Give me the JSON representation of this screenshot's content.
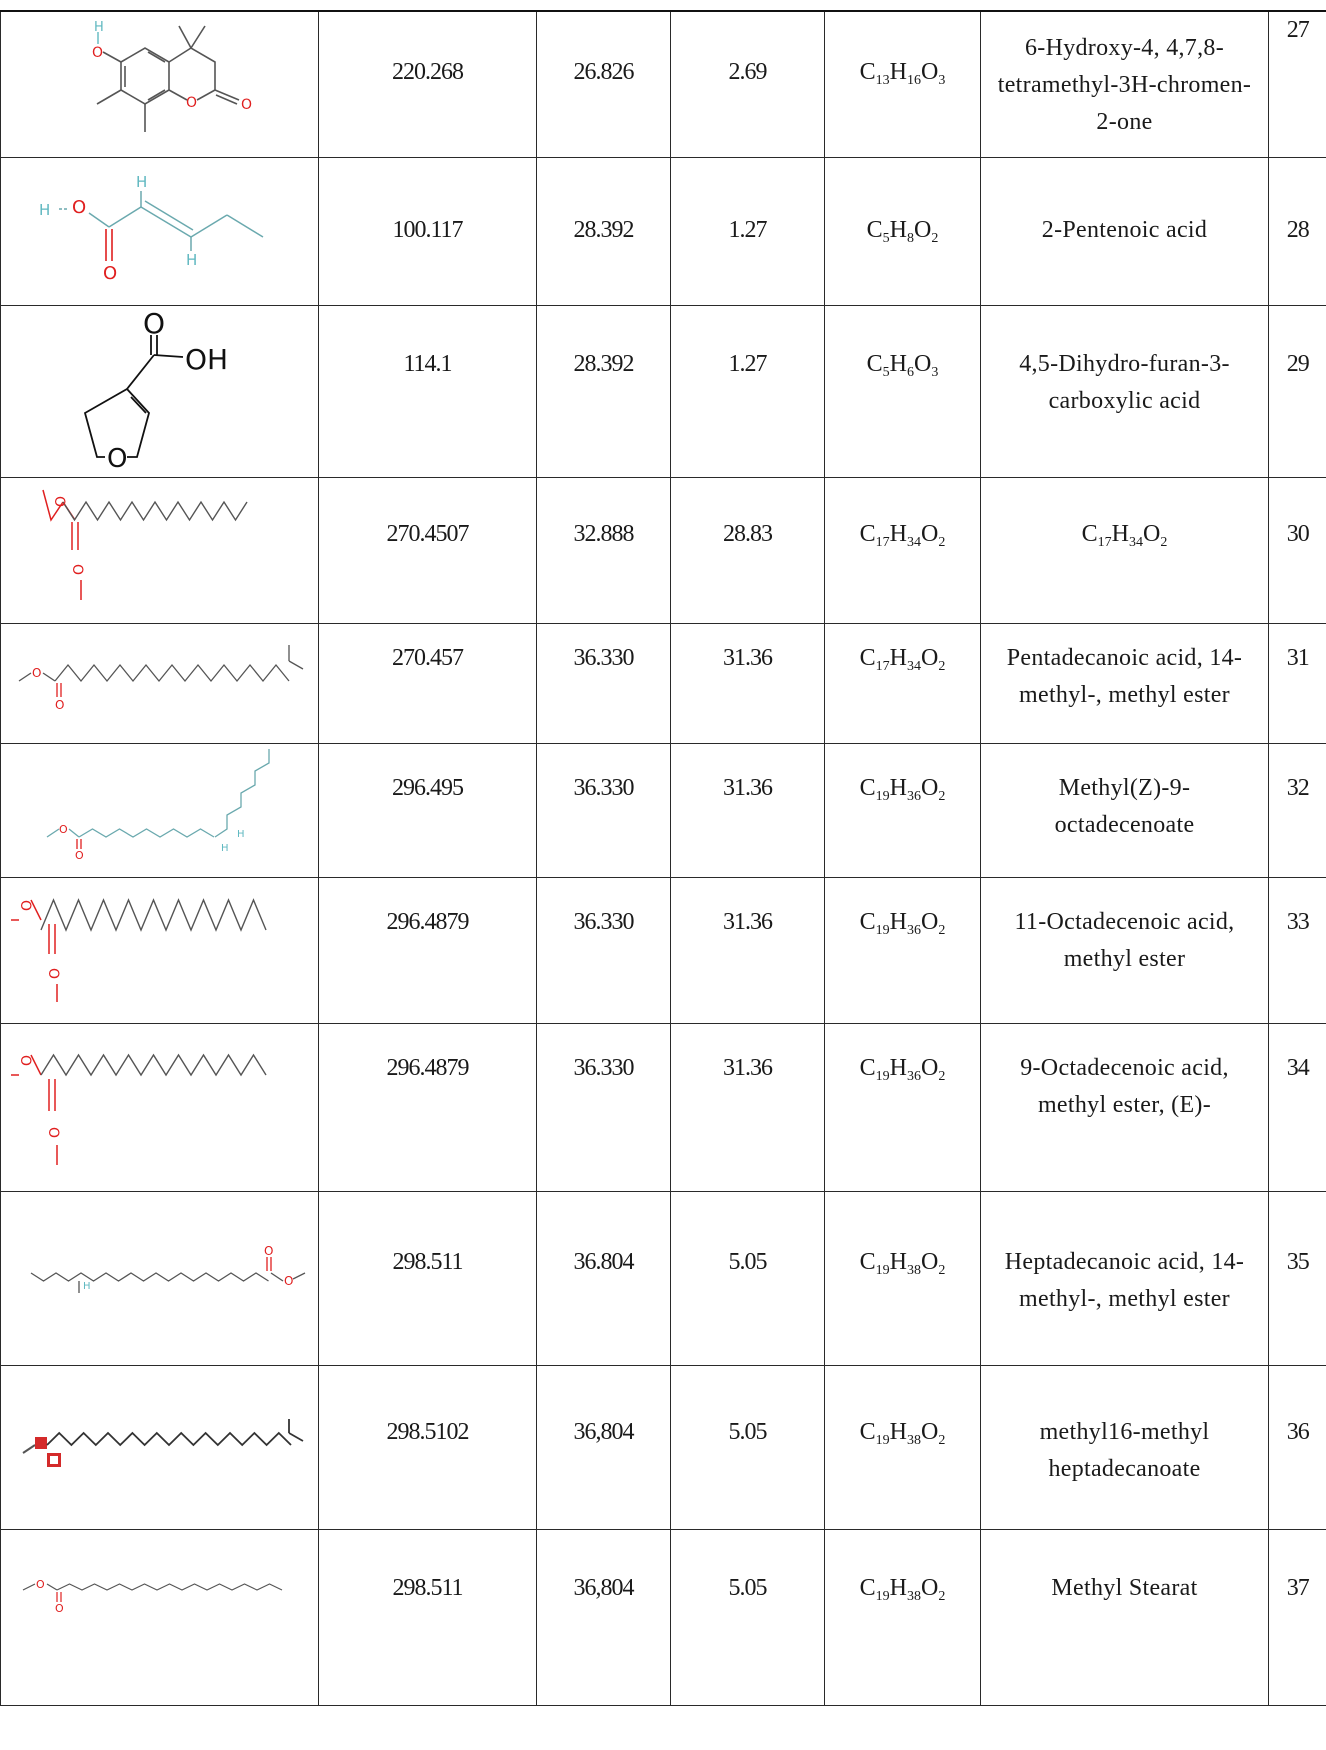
{
  "rows": [
    {
      "mw": "220.268",
      "rt": "26.826",
      "area": "2.69",
      "formula": [
        [
          "C",
          "13"
        ],
        [
          "H",
          "16"
        ],
        [
          "O",
          "3"
        ]
      ],
      "name": "6-Hydroxy-4, 4,7,8-tetramethyl-3H-chromen-2-one",
      "no": "27",
      "structure_labels": {
        "h": "H",
        "o1": "O",
        "o2": "O",
        "o3": "O"
      }
    },
    {
      "mw": "100.117",
      "rt": "28.392",
      "area": "1.27",
      "formula": [
        [
          "C",
          "5"
        ],
        [
          "H",
          "8"
        ],
        [
          "O",
          "2"
        ]
      ],
      "name": "2-Pentenoic acid",
      "no": "28",
      "structure_labels": {
        "h1": "H",
        "o1": "O",
        "o2": "O",
        "h2": "H",
        "h3": "H"
      }
    },
    {
      "mw": "114.1",
      "rt": "28.392",
      "area": "1.27",
      "formula": [
        [
          "C",
          "5"
        ],
        [
          "H",
          "6"
        ],
        [
          "O",
          "3"
        ]
      ],
      "name": "4,5-Dihydro-furan-3-carboxylic acid",
      "no": "29",
      "structure_labels": {
        "o1": "O",
        "oh": "OH",
        "o2": "O"
      }
    },
    {
      "mw": "270.4507",
      "rt": "32.888",
      "area": "28.83",
      "formula": [
        [
          "C",
          "17"
        ],
        [
          "H",
          "34"
        ],
        [
          "O",
          "2"
        ]
      ],
      "name_formula": [
        [
          "C",
          "17"
        ],
        [
          "H",
          "34"
        ],
        [
          "O",
          "2"
        ]
      ],
      "no": "30",
      "structure_labels": {
        "o1": "O",
        "o2": "O"
      }
    },
    {
      "mw": "270.457",
      "rt": "36.330",
      "area": "31.36",
      "formula": [
        [
          "C",
          "17"
        ],
        [
          "H",
          "34"
        ],
        [
          "O",
          "2"
        ]
      ],
      "name": "Pentadecanoic acid, 14-methyl-, methyl ester",
      "no": "31",
      "structure_labels": {
        "o1": "O",
        "o2": "O"
      }
    },
    {
      "mw": "296.495",
      "rt": "36.330",
      "area": "31.36",
      "formula": [
        [
          "C",
          "19"
        ],
        [
          "H",
          "36"
        ],
        [
          "O",
          "2"
        ]
      ],
      "name": "Methyl(Z)-9-octadecenoate",
      "no": "32",
      "structure_labels": {
        "o1": "O",
        "o2": "O",
        "h1": "H",
        "h2": "H"
      }
    },
    {
      "mw": "296.4879",
      "rt": "36.330",
      "area": "31.36",
      "formula": [
        [
          "C",
          "19"
        ],
        [
          "H",
          "36"
        ],
        [
          "O",
          "2"
        ]
      ],
      "name": "11-Octadecenoic acid, methyl ester",
      "no": "33",
      "structure_labels": {
        "o1": "O",
        "o2": "O"
      }
    },
    {
      "mw": "296.4879",
      "rt": "36.330",
      "area": "31.36",
      "formula": [
        [
          "C",
          "19"
        ],
        [
          "H",
          "36"
        ],
        [
          "O",
          "2"
        ]
      ],
      "name": "9-Octadecenoic acid, methyl ester, (E)-",
      "no": "34",
      "structure_labels": {
        "o1": "O",
        "o2": "O"
      }
    },
    {
      "mw": "298.511",
      "rt": "36.804",
      "area": "5.05",
      "formula": [
        [
          "C",
          "19"
        ],
        [
          "H",
          "38"
        ],
        [
          "O",
          "2"
        ]
      ],
      "name": "Heptadecanoic acid, 14-methyl-, methyl ester",
      "no": "35",
      "structure_labels": {
        "h": "H",
        "o1": "O",
        "o2": "O"
      }
    },
    {
      "mw": "298.5102",
      "rt": "36,804",
      "area": "5.05",
      "formula": [
        [
          "C",
          "19"
        ],
        [
          "H",
          "38"
        ],
        [
          "O",
          "2"
        ]
      ],
      "name": "methyl16-methyl heptadecanoate",
      "no": "36",
      "structure_labels": {}
    },
    {
      "mw": "298.511",
      "rt": "36,804",
      "area": "5.05",
      "formula": [
        [
          "C",
          "19"
        ],
        [
          "H",
          "38"
        ],
        [
          "O",
          "2"
        ]
      ],
      "name": "Methyl Stearat",
      "no": "37",
      "structure_labels": {
        "o1": "O",
        "o2": "O"
      }
    }
  ],
  "colors": {
    "oxygen": "#e02020",
    "hydrogen": "#5fb8c0",
    "bond": "#555555",
    "bond_teal": "#6aa9ae",
    "border": "#2a2a2a"
  }
}
